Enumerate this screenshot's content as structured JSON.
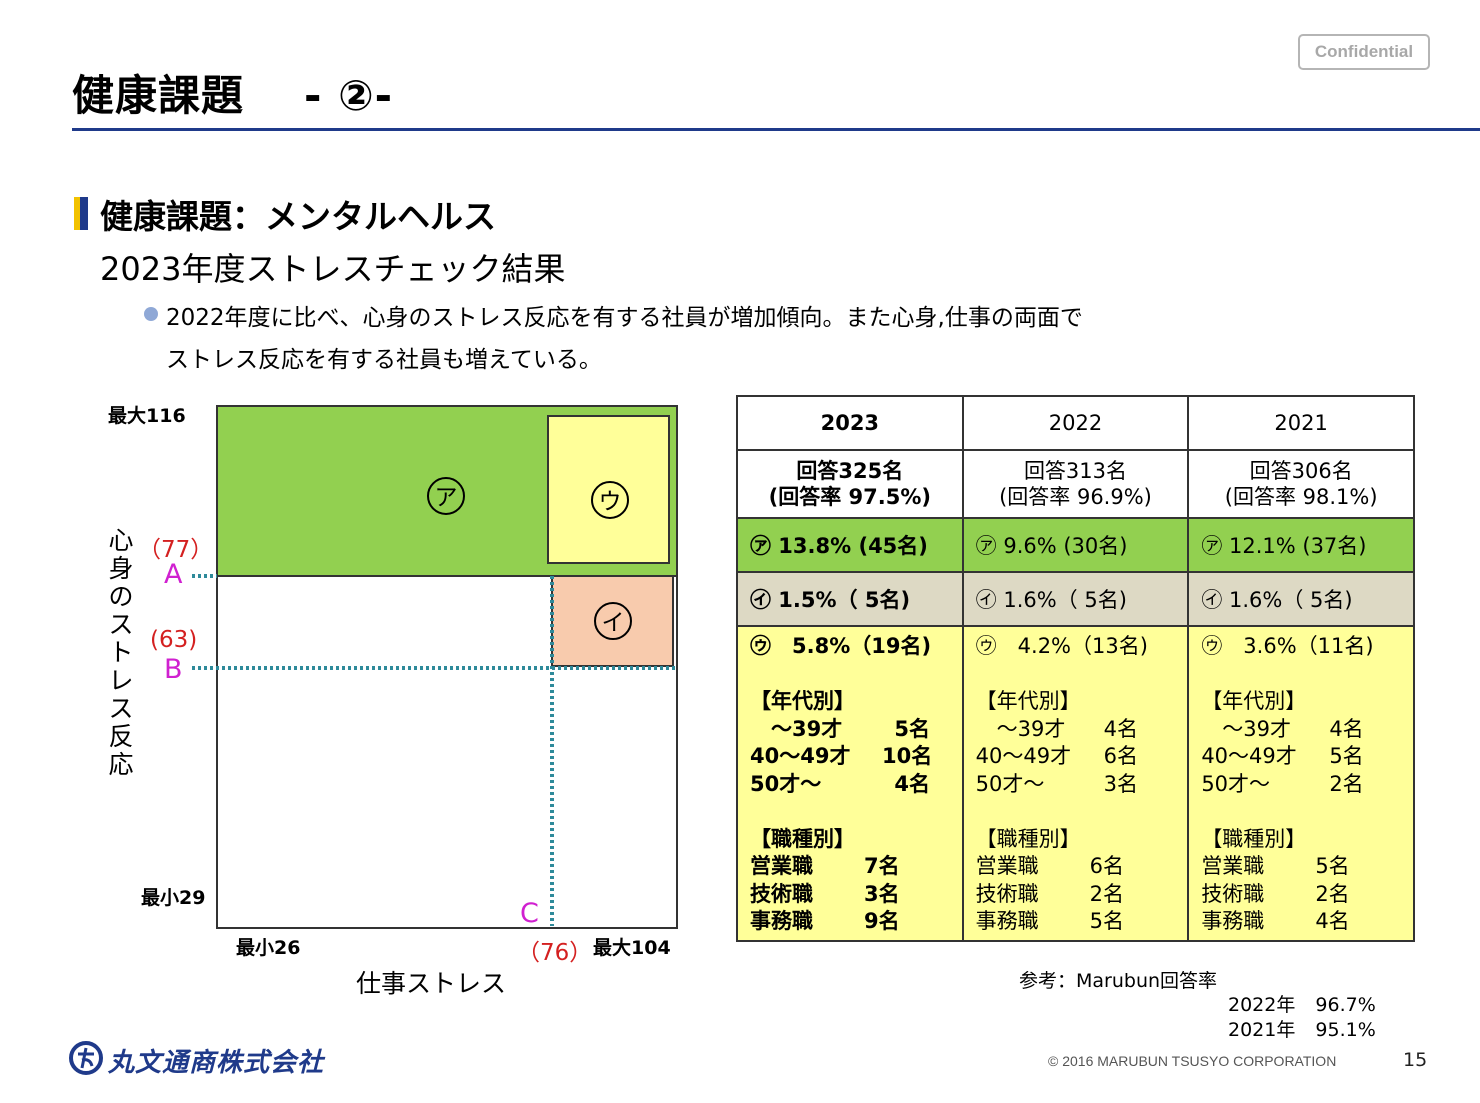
{
  "header": {
    "title": "健康課題",
    "title_num": "- ②-",
    "confidential": "Confidential"
  },
  "section": {
    "heading": "健康課題：メンタルヘルス",
    "subheading": "2023年度ストレスチェック結果",
    "bullet_line1": "2022年度に比べ、心身のストレス反応を有する社員が増加傾向。また心身,仕事の両面で",
    "bullet_line2": "ストレス反応を有する社員も増えている。"
  },
  "matrix": {
    "y_axis_label": "心身のストレス反応",
    "x_axis_label": "仕事ストレス",
    "y_max": "最大116",
    "y_min": "最小29",
    "x_min": "最小26",
    "x_max": "最大104",
    "a_value": "（77）",
    "a_letter": "A",
    "b_value": "(63)",
    "b_letter": "B",
    "c_value": "（76）",
    "c_letter": "C",
    "zone_a": "ア",
    "zone_i": "イ",
    "zone_u": "ウ",
    "colors": {
      "zone_a": "#92d050",
      "zone_u": "#ffff99",
      "zone_i": "#f8cbad"
    }
  },
  "table": {
    "years": [
      "2023",
      "2022",
      "2021"
    ],
    "responses": [
      {
        "count": "回答325名",
        "rate": "(回答率 97.5%)"
      },
      {
        "count": "回答313名",
        "rate": "(回答率 96.9%)"
      },
      {
        "count": "回答306名",
        "rate": "(回答率 98.1%)"
      }
    ],
    "zone_a": [
      "㋐ 13.8% (45名)",
      "㋐ 9.6% (30名)",
      "㋐ 12.1% (37名)"
    ],
    "zone_i": [
      "㋑ 1.5%（ 5名)",
      "㋑ 1.6%（ 5名)",
      "㋑ 1.6%（ 5名)"
    ],
    "zone_u": [
      "㋒　5.8%（19名)",
      "㋒　4.2%（13名)",
      "㋒　3.6%（11名)"
    ],
    "age_heading": "【年代別】",
    "job_heading": "【職種別】",
    "age_rows": [
      {
        "label": "　～39才",
        "values": [
          "5名",
          "4名",
          "4名"
        ]
      },
      {
        "label": "40～49才",
        "values": [
          "10名",
          "6名",
          "5名"
        ]
      },
      {
        "label": "50才～",
        "values": [
          "4名",
          "3名",
          "2名"
        ]
      }
    ],
    "job_rows": [
      {
        "label": "営業職",
        "values": [
          "7名",
          "6名",
          "5名"
        ]
      },
      {
        "label": "技術職",
        "values": [
          "3名",
          "2名",
          "2名"
        ]
      },
      {
        "label": "事務職",
        "values": [
          "9名",
          "5名",
          "4名"
        ]
      }
    ]
  },
  "reference": {
    "label": "参考：Marubun回答率",
    "rows": [
      {
        "year": "2022年",
        "rate": "96.7%"
      },
      {
        "year": "2021年",
        "rate": "95.1%"
      }
    ]
  },
  "footer": {
    "company": "丸文通商株式会社",
    "copyright": "© 2016 MARUBUN TSUSYO CORPORATION",
    "page": "15"
  }
}
